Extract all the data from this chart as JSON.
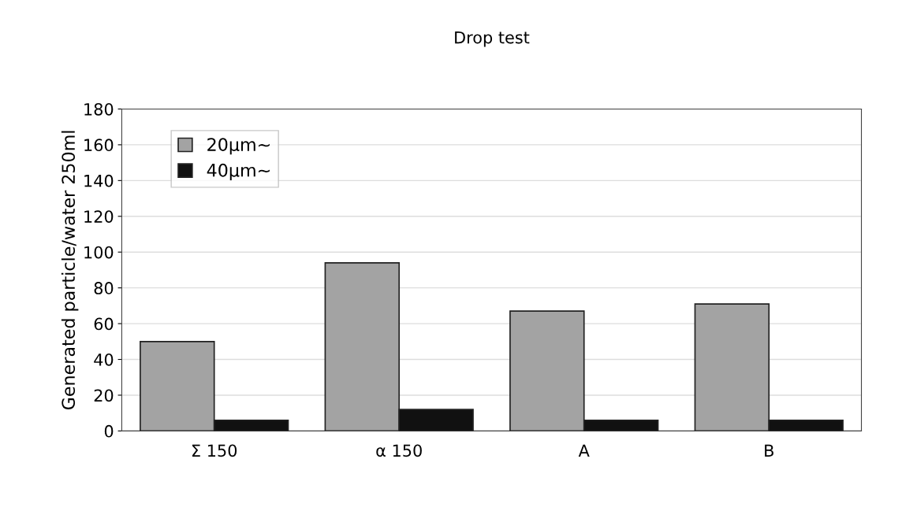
{
  "chart_data": {
    "type": "bar",
    "title": "Drop test",
    "ylabel": "Generated particle/water 250ml",
    "categories": [
      "Σ 150",
      "α 150",
      "A",
      "B"
    ],
    "series": [
      {
        "name": "20μm∼",
        "color": "#a3a3a3",
        "values": [
          50,
          94,
          67,
          71
        ]
      },
      {
        "name": "40μm∼",
        "color": "#111111",
        "values": [
          6,
          12,
          6,
          6
        ]
      }
    ],
    "ylim": [
      0,
      180
    ],
    "yticks": [
      0,
      20,
      40,
      60,
      80,
      100,
      120,
      140,
      160,
      180
    ],
    "grid": "y",
    "legend": "top left"
  }
}
